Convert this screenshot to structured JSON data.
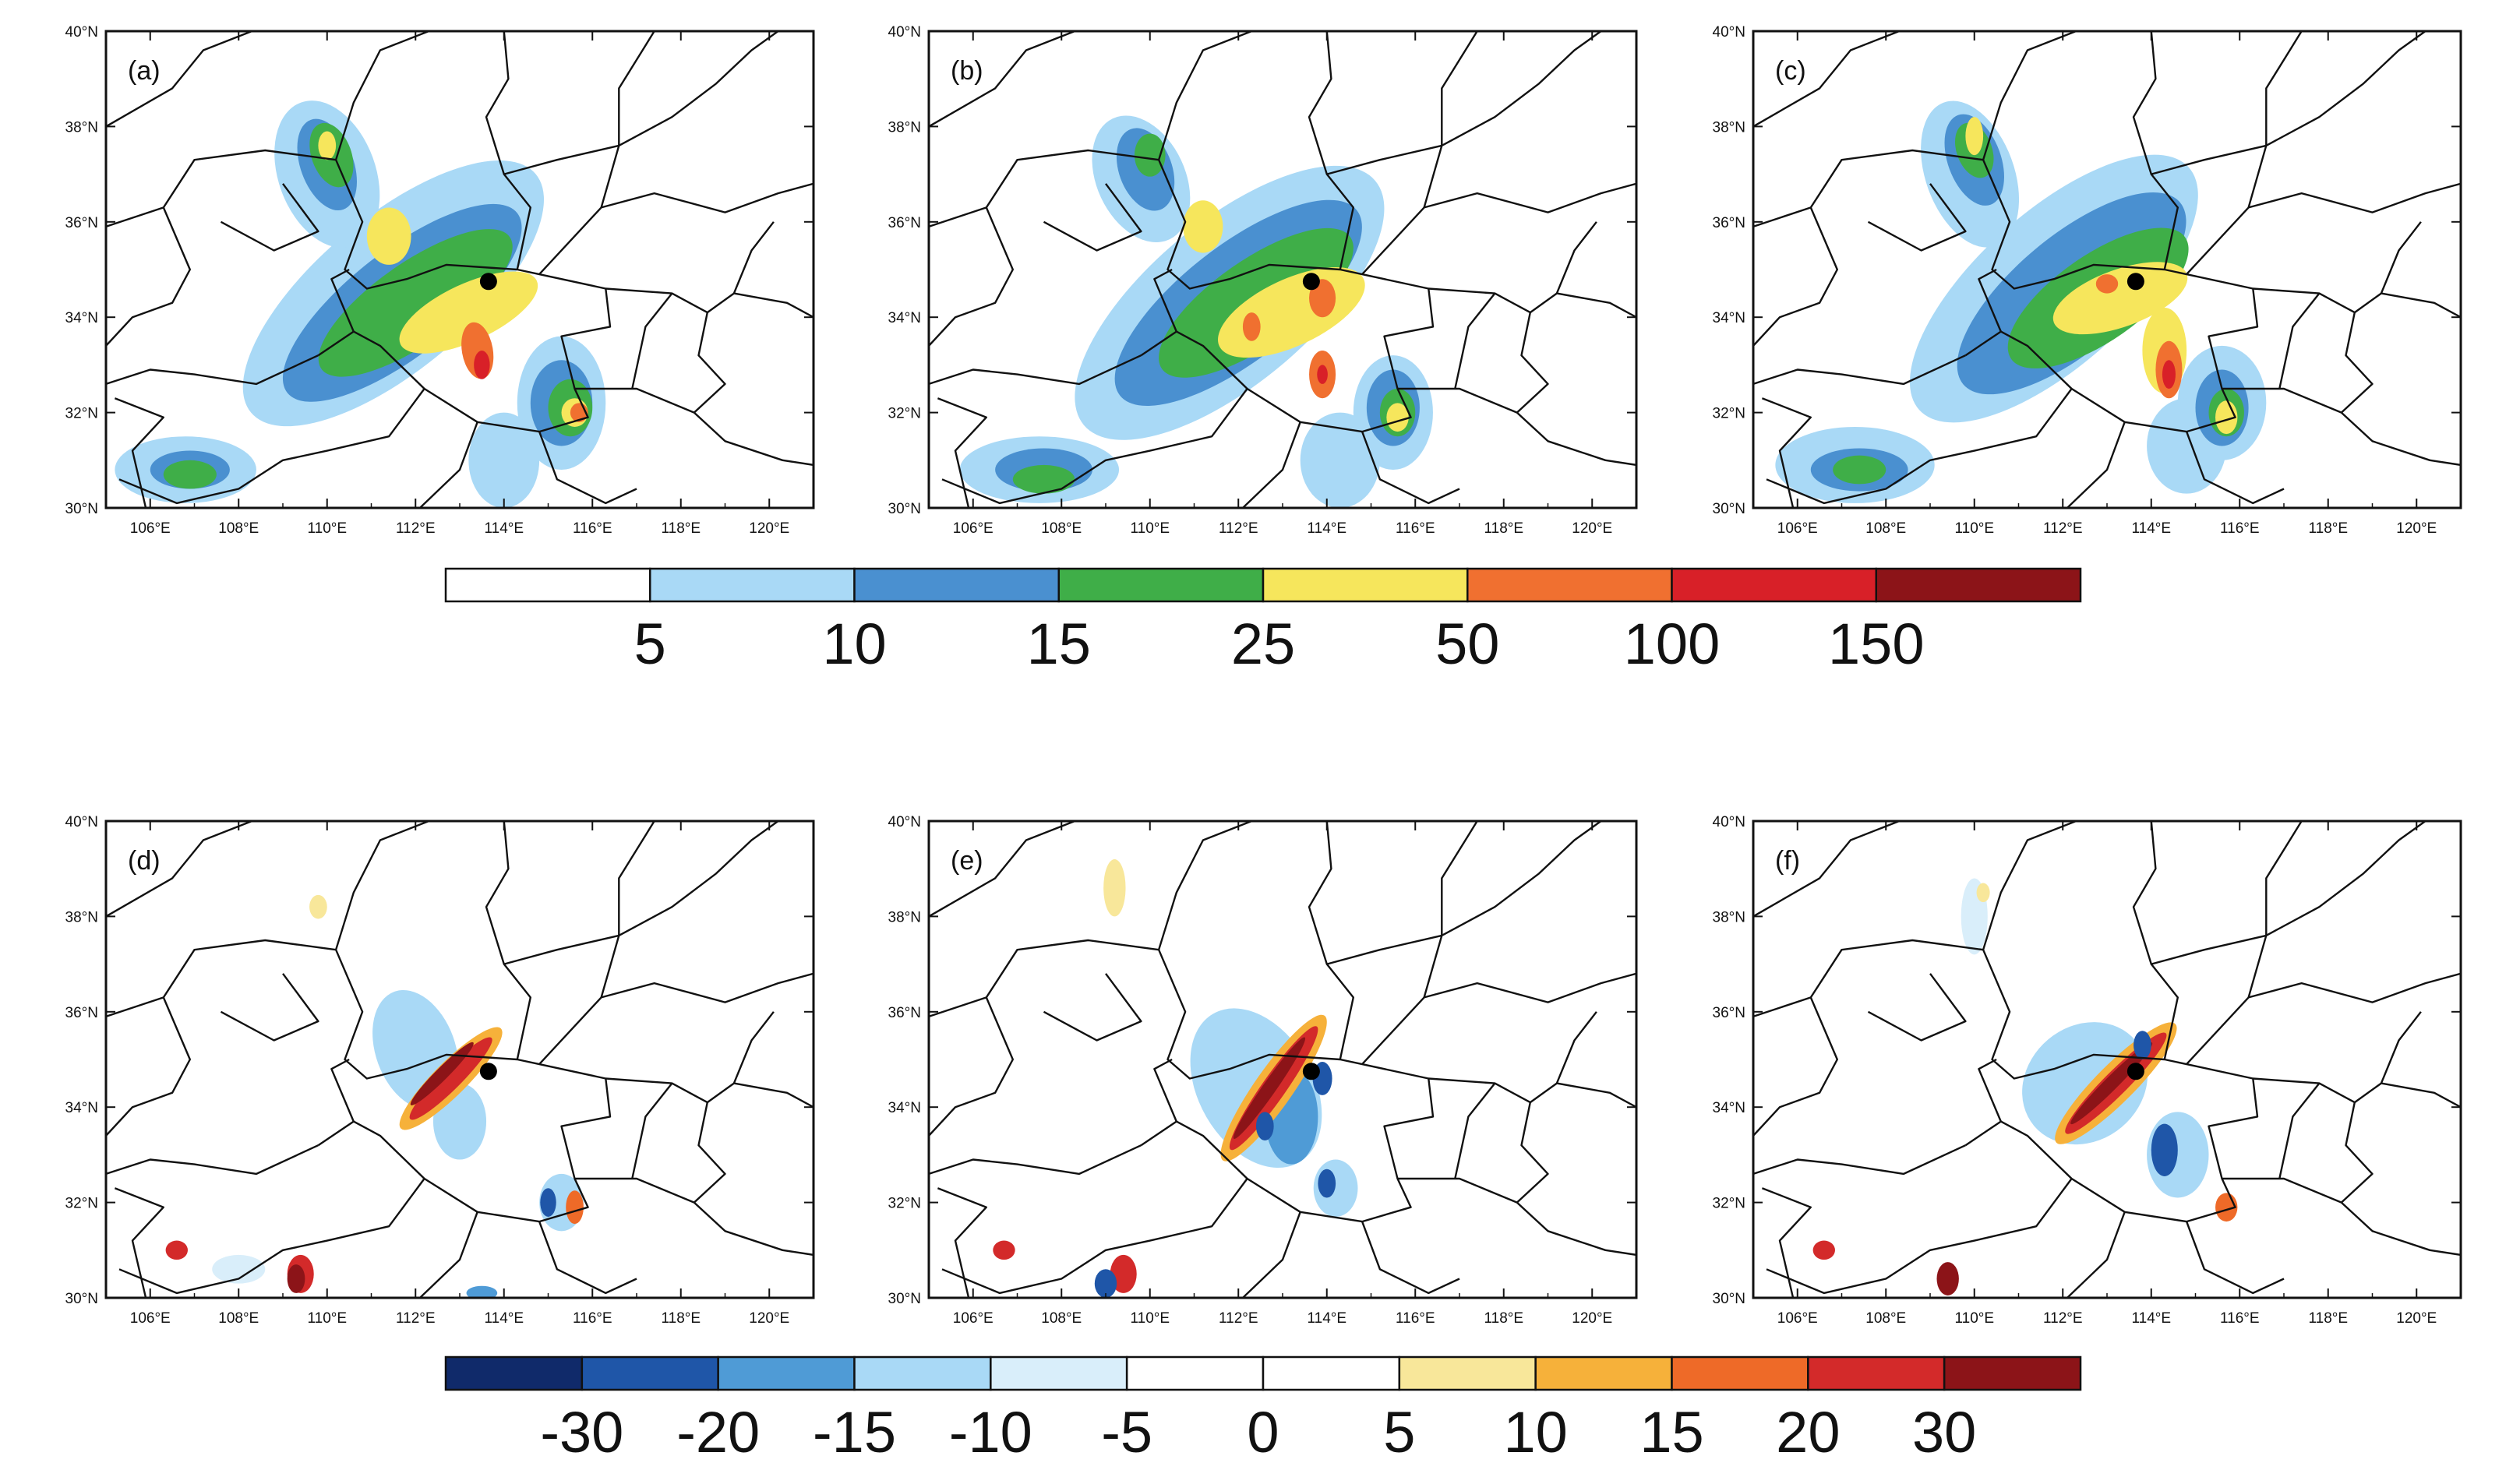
{
  "figure": {
    "x_ticks": [
      "106°E",
      "108°E",
      "110°E",
      "112°E",
      "114°E",
      "116°E",
      "118°E",
      "120°E"
    ],
    "y_ticks": [
      "30°N",
      "32°N",
      "34°N",
      "36°N",
      "38°N",
      "40°N"
    ],
    "panels": [
      {
        "label": "(a)"
      },
      {
        "label": "(b)"
      },
      {
        "label": "(c)"
      },
      {
        "label": "(d)"
      },
      {
        "label": "(e)"
      },
      {
        "label": "(f)"
      }
    ],
    "colorbar_top": {
      "labels": [
        "5",
        "10",
        "15",
        "25",
        "50",
        "100",
        "150"
      ],
      "colors": [
        "#ffffff",
        "#a9d9f6",
        "#4a90d0",
        "#3fae48",
        "#f6e65c",
        "#f07030",
        "#d82028",
        "#8c1418"
      ]
    },
    "colorbar_bottom": {
      "labels": [
        "-30",
        "-20",
        "-15",
        "-10",
        "-5",
        "0",
        "5",
        "10",
        "15",
        "20",
        "30"
      ],
      "colors": [
        "#102a6a",
        "#1f56a8",
        "#4f9bd6",
        "#a9d9f6",
        "#d9eefa",
        "#ffffff",
        "#ffffff",
        "#f8e79a",
        "#f6b13a",
        "#ee6a28",
        "#d32a2a",
        "#8c1418"
      ]
    },
    "station": {
      "lon": 113.65,
      "lat": 34.75
    }
  }
}
